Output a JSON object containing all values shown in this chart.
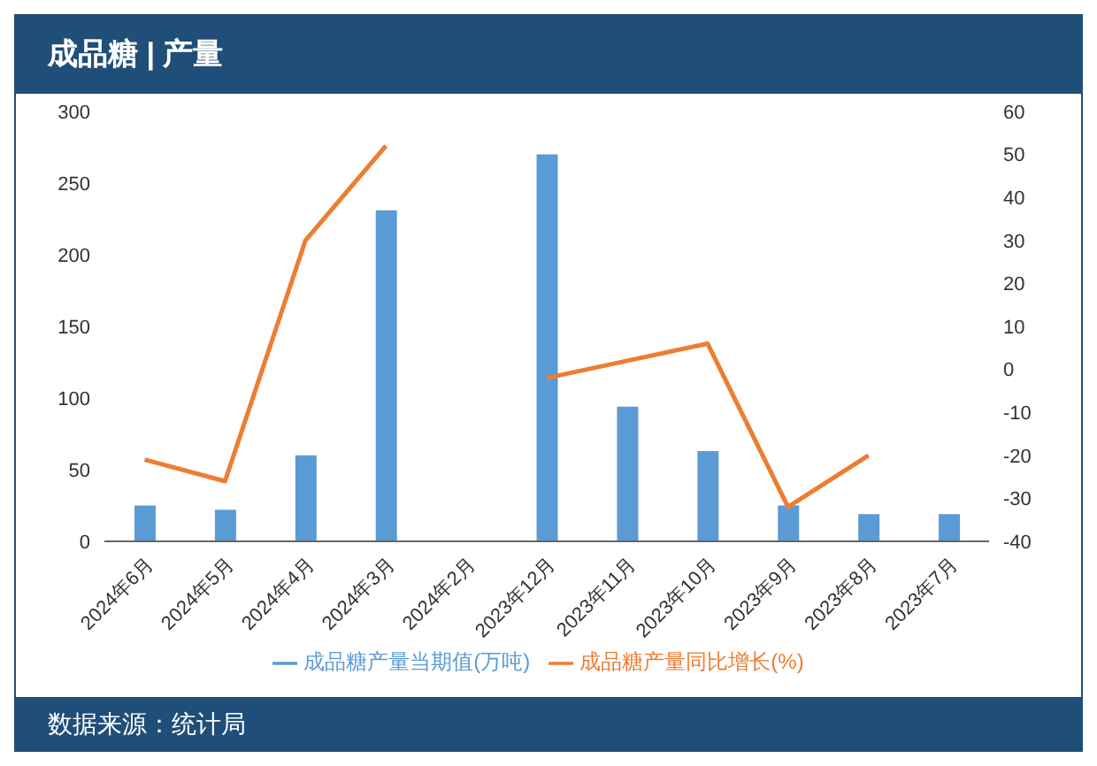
{
  "chart_data": {
    "type": "bar",
    "title": "成品糖 | 产量",
    "categories": [
      "2024年6月",
      "2024年5月",
      "2024年4月",
      "2024年3月",
      "2024年2月",
      "2023年12月",
      "2023年11月",
      "2023年10月",
      "2023年9月",
      "2023年8月",
      "2023年7月"
    ],
    "series": [
      {
        "name": "成品糖产量当期值(万吨)",
        "color": "#5b9bd5",
        "values": [
          25,
          22,
          60,
          231,
          null,
          270,
          94,
          63,
          25,
          19,
          19
        ]
      },
      {
        "name": "成品糖产量同比增长(%)",
        "type": "line",
        "axis": "y2",
        "color": "#ed7d31",
        "values": [
          -21,
          -26,
          30,
          52,
          null,
          -2,
          2,
          6,
          -32,
          -20,
          null
        ]
      }
    ],
    "ylim": [
      0,
      300
    ],
    "yticks": [
      0,
      50,
      100,
      150,
      200,
      250,
      300
    ],
    "y2lim": [
      -40,
      60
    ],
    "y2ticks": [
      -40,
      -30,
      -20,
      -10,
      0,
      10,
      20,
      30,
      40,
      50,
      60
    ],
    "legend": "bottom",
    "marker": "none",
    "annotations": [
      "数据来源：统计局"
    ]
  }
}
